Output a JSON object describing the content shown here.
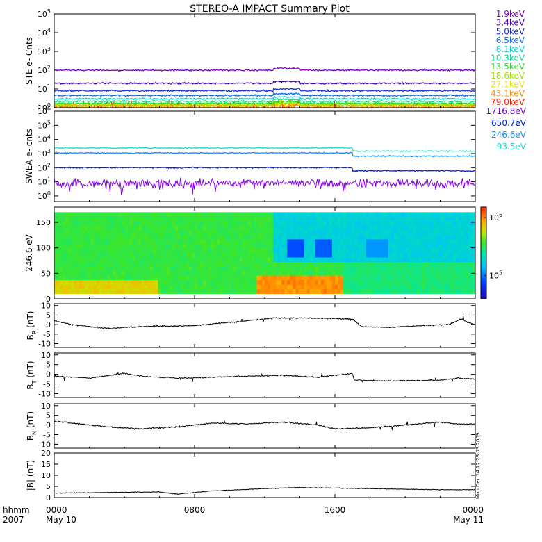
{
  "title": "STEREO-A IMPACT Summary Plot",
  "stamp": "Mon Dec 14 12:28:03 2009",
  "footer": {
    "hhmm": "hhmm",
    "year": "2007"
  },
  "time_axis": {
    "ticks": [
      {
        "h": 0,
        "top": "0000",
        "bottom": "May 10"
      },
      {
        "h": 8,
        "top": "0800",
        "bottom": ""
      },
      {
        "h": 16,
        "top": "1600",
        "bottom": ""
      },
      {
        "h": 24,
        "top": "0000",
        "bottom": "May 11"
      }
    ]
  },
  "chart_data": [
    {
      "type": "line",
      "id": "ste",
      "ylabel": "STE e- Cnts",
      "yscale": "log",
      "ylim": [
        1,
        100000
      ],
      "yticks": [
        {
          "v": 1,
          "b": "10",
          "e": "0"
        },
        {
          "v": 10,
          "b": "10",
          "e": "1"
        },
        {
          "v": 100,
          "b": "10",
          "e": "2"
        },
        {
          "v": 1000,
          "b": "10",
          "e": "3"
        },
        {
          "v": 10000,
          "b": "10",
          "e": "4"
        },
        {
          "v": 100000,
          "b": "10",
          "e": "5"
        }
      ],
      "series": [
        {
          "name": "1.9keV",
          "color": "#8000c0",
          "base": 100
        },
        {
          "name": "3.4keV",
          "color": "#4000b0",
          "base": 20
        },
        {
          "name": "5.0keV",
          "color": "#1830d0",
          "base": 8
        },
        {
          "name": "6.5keV",
          "color": "#0070ff",
          "base": 4.5
        },
        {
          "name": "8.1keV",
          "color": "#00c8d8",
          "base": 3
        },
        {
          "name": "10.3keV",
          "color": "#00d890",
          "base": 2.2
        },
        {
          "name": "13.5keV",
          "color": "#20e020",
          "base": 1.7
        },
        {
          "name": "18.6keV",
          "color": "#a0e000",
          "base": 1.4
        },
        {
          "name": "27.1keV",
          "color": "#e8e000",
          "base": 1.2
        },
        {
          "name": "43.1keV",
          "color": "#ff9000",
          "base": 1.1
        },
        {
          "name": "79.0keV",
          "color": "#ff2000",
          "base": 1.05
        }
      ]
    },
    {
      "type": "line",
      "id": "swea",
      "ylabel": "SWEA e- cnts",
      "yscale": "log",
      "ylim": [
        0.4,
        1000000
      ],
      "yticks": [
        {
          "v": 1,
          "b": "10",
          "e": "0"
        },
        {
          "v": 10,
          "b": "10",
          "e": "1"
        },
        {
          "v": 100,
          "b": "10",
          "e": "2"
        },
        {
          "v": 1000,
          "b": "10",
          "e": "3"
        },
        {
          "v": 10000,
          "b": "10",
          "e": "4"
        },
        {
          "v": 100000,
          "b": "10",
          "e": "5"
        },
        {
          "v": 1000000,
          "b": "10",
          "e": "6"
        }
      ],
      "series": [
        {
          "name": "1716.8eV",
          "color": "#8000e0",
          "base": 8
        },
        {
          "name": "650.7eV",
          "color": "#0020d0",
          "base": 100
        },
        {
          "name": "246.6eV",
          "color": "#1090f0",
          "base": 1100
        },
        {
          "name": "93.5eV",
          "color": "#20d8c8",
          "base": 2500
        }
      ]
    },
    {
      "type": "heatmap",
      "id": "pad",
      "ylabel": "246.6 eV",
      "ylim": [
        0,
        180
      ],
      "yticks": [
        0,
        50,
        100,
        150
      ],
      "colorbar": {
        "scale": "log",
        "range": [
          40000,
          1500000
        ],
        "ticks": [
          {
            "v": 100000,
            "b": "10",
            "e": "5"
          },
          {
            "v": 1000000,
            "b": "10",
            "e": "6"
          }
        ]
      }
    },
    {
      "type": "line",
      "id": "br",
      "ylabel_main": "B",
      "ylabel_sub": "R",
      "ylabel_unit": " (nT)",
      "ylim": [
        -12,
        11
      ],
      "yticks": [
        -10,
        -5,
        0,
        5,
        10
      ],
      "segments": [
        [
          0,
          2.0
        ],
        [
          1,
          0.0
        ],
        [
          3,
          -2.0
        ],
        [
          5,
          -1.0
        ],
        [
          8,
          -0.5
        ],
        [
          11,
          2.0
        ],
        [
          12.5,
          3.5
        ],
        [
          14,
          3.5
        ],
        [
          17,
          3.0
        ],
        [
          17.5,
          -1.0
        ],
        [
          19,
          -1.5
        ],
        [
          21,
          -0.5
        ],
        [
          22.5,
          0.0
        ],
        [
          23.2,
          3.0
        ],
        [
          23.6,
          1.0
        ],
        [
          24,
          0.0
        ]
      ]
    },
    {
      "type": "line",
      "id": "bt",
      "ylabel_main": "B",
      "ylabel_sub": "T",
      "ylabel_unit": " (nT)",
      "ylim": [
        -12,
        11
      ],
      "yticks": [
        -10,
        -5,
        0,
        5,
        10
      ],
      "segments": [
        [
          0,
          -1.0
        ],
        [
          2,
          -2.0
        ],
        [
          4,
          0.5
        ],
        [
          5,
          -1.0
        ],
        [
          7,
          -2.0
        ],
        [
          9,
          -1.5
        ],
        [
          11,
          -1.0
        ],
        [
          13,
          -0.5
        ],
        [
          15,
          -1.5
        ],
        [
          17,
          0.5
        ],
        [
          17.1,
          -3.0
        ],
        [
          19,
          -3.5
        ],
        [
          22,
          -3.0
        ],
        [
          23,
          -2.0
        ],
        [
          24,
          -2.5
        ]
      ]
    },
    {
      "type": "line",
      "id": "bn",
      "ylabel_main": "B",
      "ylabel_sub": "N",
      "ylabel_unit": " (nT)",
      "ylim": [
        -12,
        11
      ],
      "yticks": [
        -10,
        -5,
        0,
        5,
        10
      ],
      "segments": [
        [
          0,
          2.0
        ],
        [
          1,
          1.0
        ],
        [
          3,
          -1.0
        ],
        [
          5,
          -2.0
        ],
        [
          7,
          -1.0
        ],
        [
          9,
          1.0
        ],
        [
          11,
          0.5
        ],
        [
          13,
          1.5
        ],
        [
          15,
          0.0
        ],
        [
          16,
          -2.0
        ],
        [
          18,
          -1.5
        ],
        [
          20,
          0.0
        ],
        [
          22,
          1.5
        ],
        [
          23,
          0.5
        ],
        [
          24,
          0.5
        ]
      ]
    },
    {
      "type": "line",
      "id": "bmag",
      "ylabel_main": "|B|",
      "ylabel_sub": "",
      "ylabel_unit": " (nT)",
      "ylim": [
        0,
        20
      ],
      "yticks": [
        0,
        5,
        10,
        15,
        20
      ],
      "segments": [
        [
          0,
          2.0
        ],
        [
          6,
          2.5
        ],
        [
          7,
          1.5
        ],
        [
          9,
          3.0
        ],
        [
          12,
          4.0
        ],
        [
          14,
          4.5
        ],
        [
          18,
          4.0
        ],
        [
          22,
          3.5
        ],
        [
          24,
          3.5
        ]
      ]
    }
  ]
}
